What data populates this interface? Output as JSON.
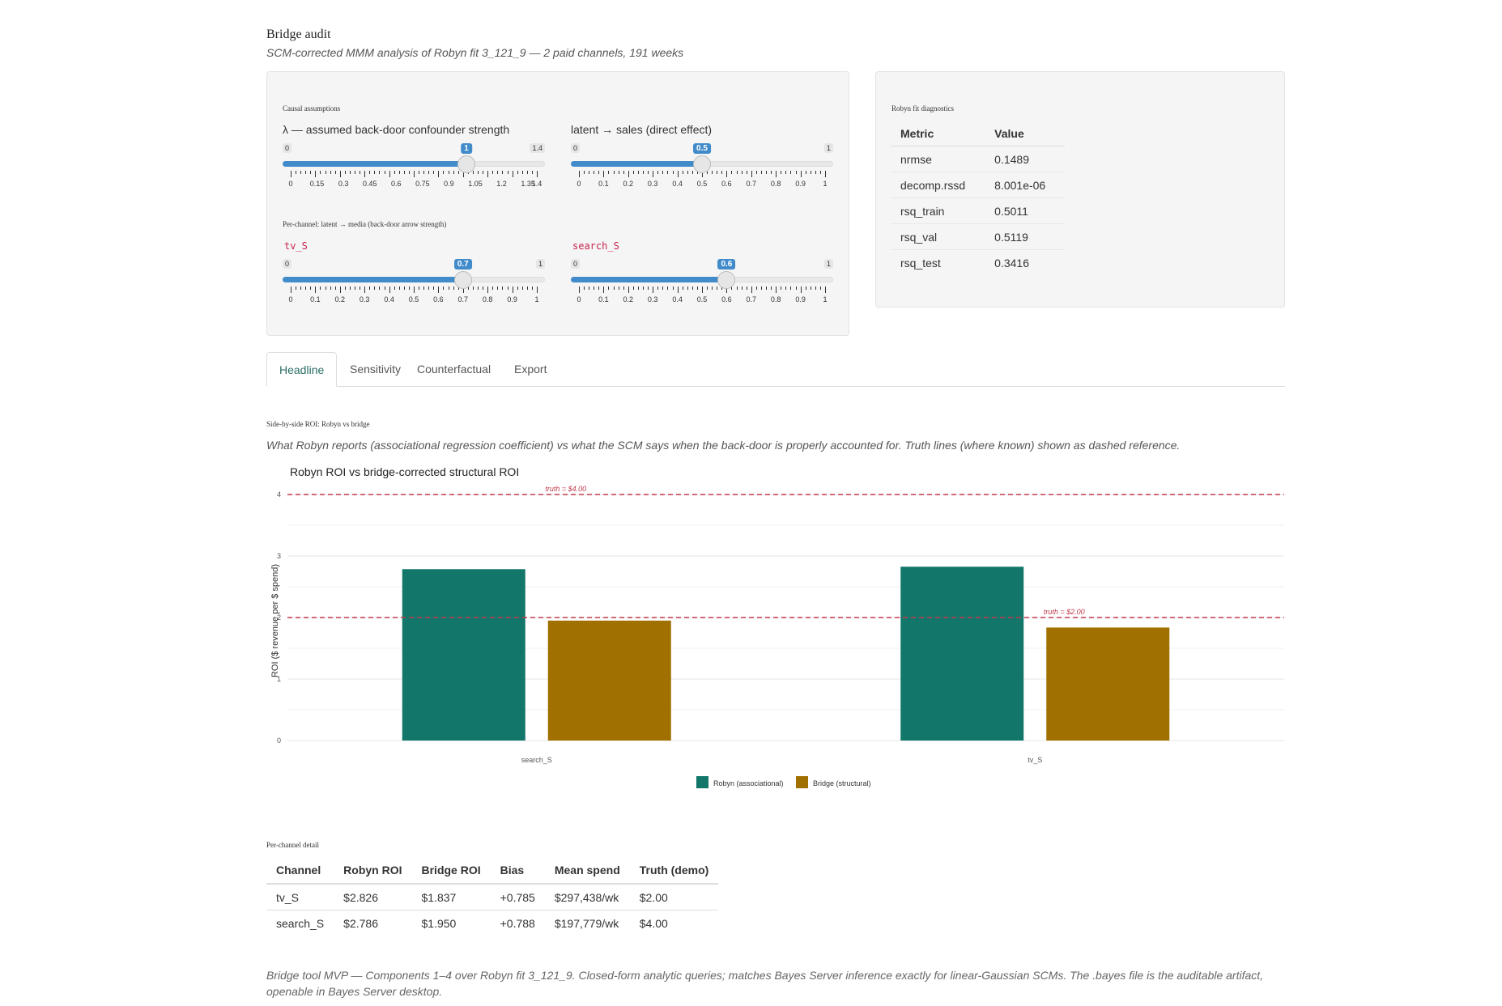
{
  "header": {
    "title": "Bridge audit",
    "subtitle": "SCM-corrected MMM analysis of Robyn fit 3_121_9 — 2 paid channels, 191 weeks"
  },
  "assumptions": {
    "heading": "Causal assumptions",
    "lambda": {
      "label": "λ — assumed back-door confounder strength",
      "min": "0",
      "max": "1.4",
      "value": "1",
      "level": 0.714,
      "ticks": [
        "0",
        "0.15",
        "0.3",
        "0.45",
        "0.6",
        "0.75",
        "0.9",
        "1.05",
        "1.2",
        "1.35",
        "1.4"
      ]
    },
    "direct": {
      "label": "latent → sales (direct effect)",
      "min": "0",
      "max": "1",
      "value": "0.5",
      "level": 0.5,
      "ticks": [
        "0",
        "0.1",
        "0.2",
        "0.3",
        "0.4",
        "0.5",
        "0.6",
        "0.7",
        "0.8",
        "0.9",
        "1"
      ]
    },
    "per_channel_heading": "Per-channel: latent → media (back-door arrow strength)",
    "tv": {
      "label": "tv_S",
      "min": "0",
      "max": "1",
      "value": "0.7",
      "level": 0.7,
      "ticks": [
        "0",
        "0.1",
        "0.2",
        "0.3",
        "0.4",
        "0.5",
        "0.6",
        "0.7",
        "0.8",
        "0.9",
        "1"
      ]
    },
    "search": {
      "label": "search_S",
      "min": "0",
      "max": "1",
      "value": "0.6",
      "level": 0.6,
      "ticks": [
        "0",
        "0.1",
        "0.2",
        "0.3",
        "0.4",
        "0.5",
        "0.6",
        "0.7",
        "0.8",
        "0.9",
        "1"
      ]
    }
  },
  "diagnostics": {
    "heading": "Robyn fit diagnostics",
    "columns": [
      "Metric",
      "Value"
    ],
    "rows": [
      [
        "nrmse",
        "0.1489"
      ],
      [
        "decomp.rssd",
        "8.001e-06"
      ],
      [
        "rsq_train",
        "0.5011"
      ],
      [
        "rsq_val",
        "0.5119"
      ],
      [
        "rsq_test",
        "0.3416"
      ]
    ]
  },
  "tabs": [
    "Headline",
    "Sensitivity",
    "Counterfactual",
    "Export"
  ],
  "headline": {
    "section_heading": "Side-by-side ROI: Robyn vs bridge",
    "note": "What Robyn reports (associational regression coefficient) vs what the SCM says when the back-door is properly accounted for. Truth lines (where known) shown as dashed reference."
  },
  "chart_data": {
    "type": "bar",
    "title": "Robyn ROI vs bridge-corrected structural ROI",
    "xlabel": "",
    "ylabel": "ROI ($ revenue per $ spend)",
    "ylim": [
      0,
      4
    ],
    "yticks": [
      "0",
      "1",
      "2",
      "3",
      "4"
    ],
    "categories": [
      "search_S",
      "tv_S"
    ],
    "series": [
      {
        "name": "Robyn (associational)",
        "color": "#12776a",
        "values": [
          2.786,
          2.826
        ]
      },
      {
        "name": "Bridge (structural)",
        "color": "#a07000",
        "values": [
          1.95,
          1.837
        ]
      }
    ],
    "reference_lines": [
      {
        "label": "truth = $4.00",
        "value": 4.0,
        "category": "search_S"
      },
      {
        "label": "truth = $2.00",
        "value": 2.0,
        "category": "tv_S"
      }
    ],
    "reference_color": "#c0394b",
    "grid": true,
    "legend": "bottom"
  },
  "detail": {
    "heading": "Per-channel detail",
    "columns": [
      "Channel",
      "Robyn ROI",
      "Bridge ROI",
      "Bias",
      "Mean spend",
      "Truth (demo)"
    ],
    "rows": [
      [
        "tv_S",
        "$2.826",
        "$1.837",
        "+0.785",
        "$297,438/wk",
        "$2.00"
      ],
      [
        "search_S",
        "$2.786",
        "$1.950",
        "+0.788",
        "$197,779/wk",
        "$4.00"
      ]
    ]
  },
  "footer": "Bridge tool MVP — Components 1–4 over Robyn fit 3_121_9. Closed-form analytic queries; matches Bayes Server inference exactly for linear-Gaussian SCMs. The .bayes file is the auditable artifact, openable in Bayes Server desktop."
}
